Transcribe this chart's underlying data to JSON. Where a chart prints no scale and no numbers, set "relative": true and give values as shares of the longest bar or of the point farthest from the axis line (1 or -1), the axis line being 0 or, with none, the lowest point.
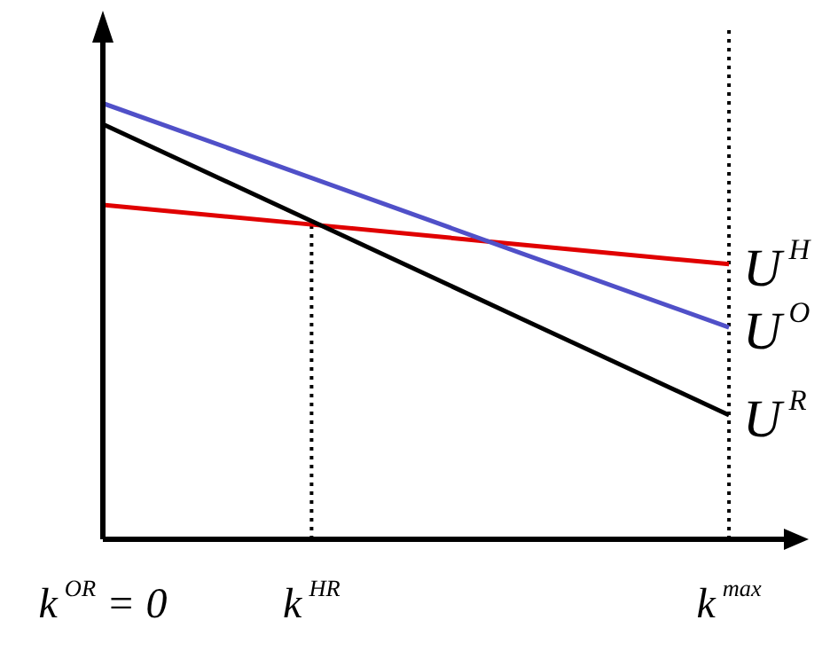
{
  "chart_data": {
    "type": "line",
    "relative": true,
    "categories": [
      "k$^{OR}$ = 0",
      "k$^{HR}$",
      null,
      "k$^{max}$"
    ],
    "series": [
      {
        "name": "U$^{H}$",
        "color": "#e00000",
        "values": [
          0.767,
          0.722,
          0.676,
          0.631
        ]
      },
      {
        "name": "U$^{O}$",
        "color": "#5050c8",
        "values": [
          1,
          0.829,
          0.657,
          0.486
        ]
      },
      {
        "name": "U$^{R}$",
        "color": "#000000",
        "values": [
          0.952,
          0.73,
          0.507,
          0.285
        ]
      }
    ],
    "ref_lines": [
      {
        "axis": "x",
        "value": "k$^{HR}$",
        "color": "#000000",
        "line_style": "dotted"
      },
      {
        "axis": "x",
        "value": "k$^{max}$",
        "color": "#000000",
        "line_style": "dotted"
      }
    ],
    "grid": false,
    "legend": false,
    "marker": "none",
    "line_style": "solid"
  }
}
